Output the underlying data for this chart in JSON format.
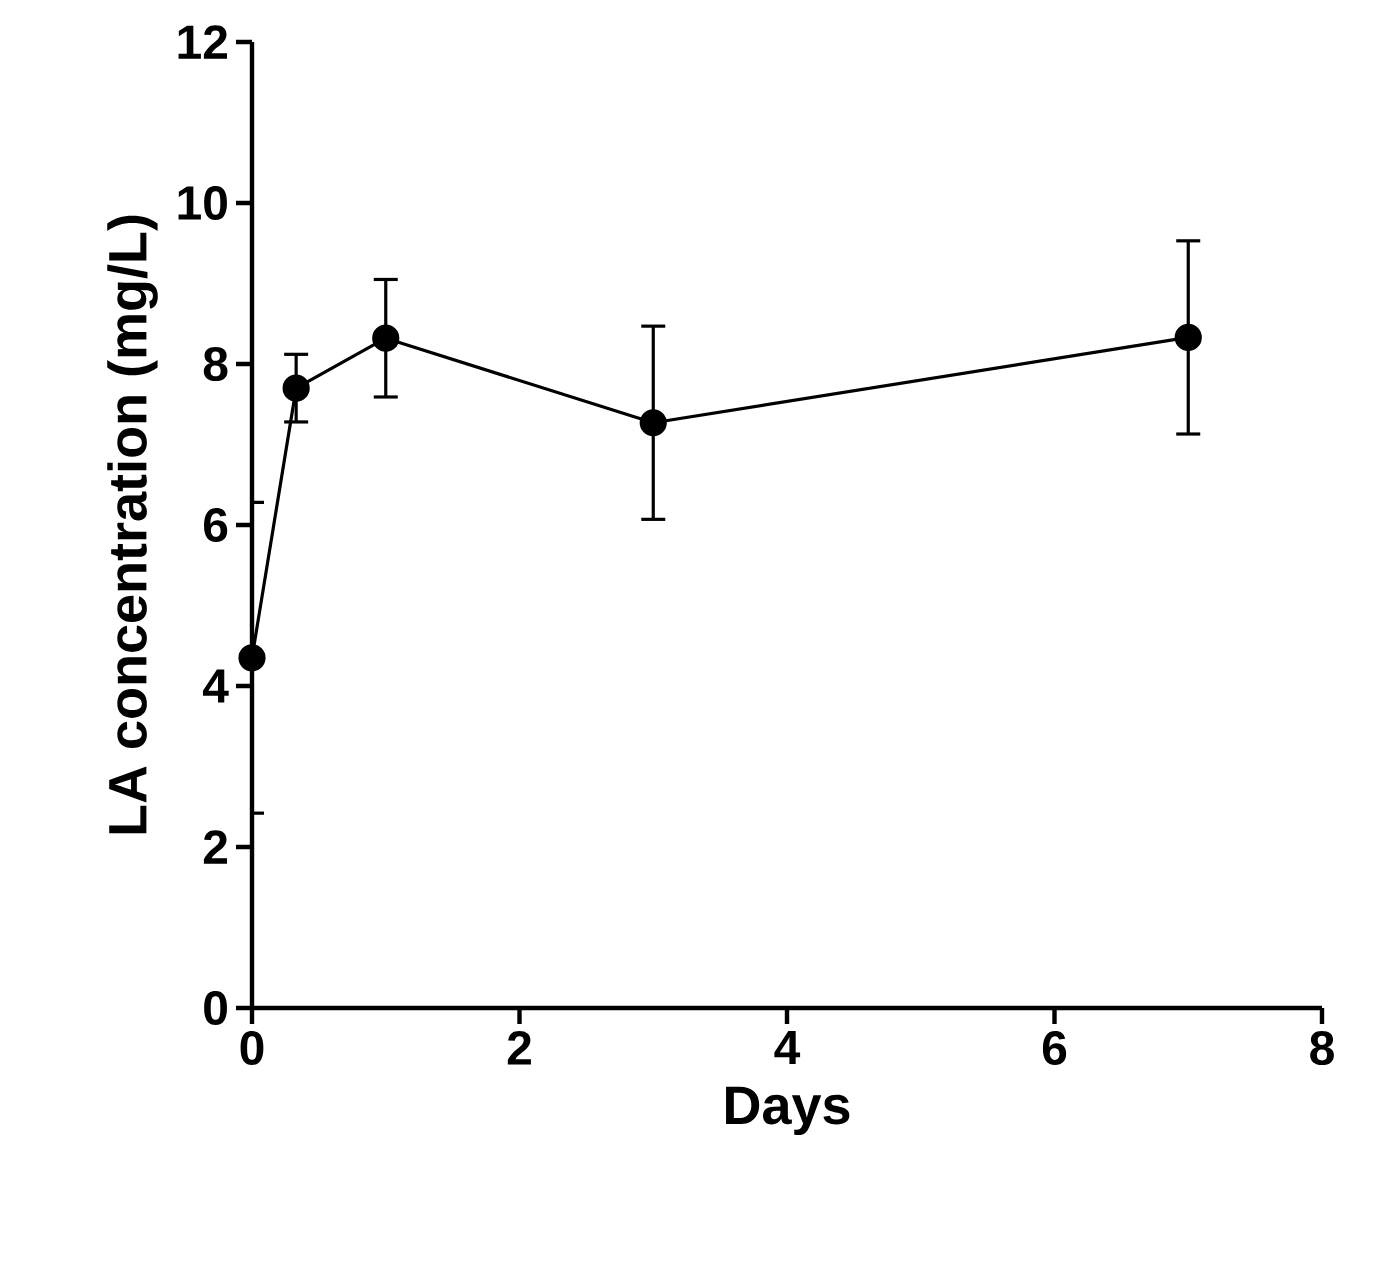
{
  "chart_data": {
    "type": "line",
    "xlabel": "Days",
    "ylabel": "LA concentration (mg/L)",
    "x": [
      0,
      0.33,
      1,
      3,
      7
    ],
    "series": [
      {
        "color": "#000000",
        "values": [
          4.35,
          7.7,
          8.32,
          7.27,
          8.33
        ],
        "errors": [
          1.93,
          0.42,
          0.73,
          1.2,
          1.2
        ]
      }
    ],
    "xlim": [
      0,
      8
    ],
    "ylim": [
      0,
      12
    ],
    "xticks": [
      0,
      2,
      4,
      6,
      8
    ],
    "yticks": [
      0,
      2,
      4,
      6,
      8,
      10,
      12
    ],
    "marker": "circle",
    "line_style": "solid",
    "grid": false
  }
}
